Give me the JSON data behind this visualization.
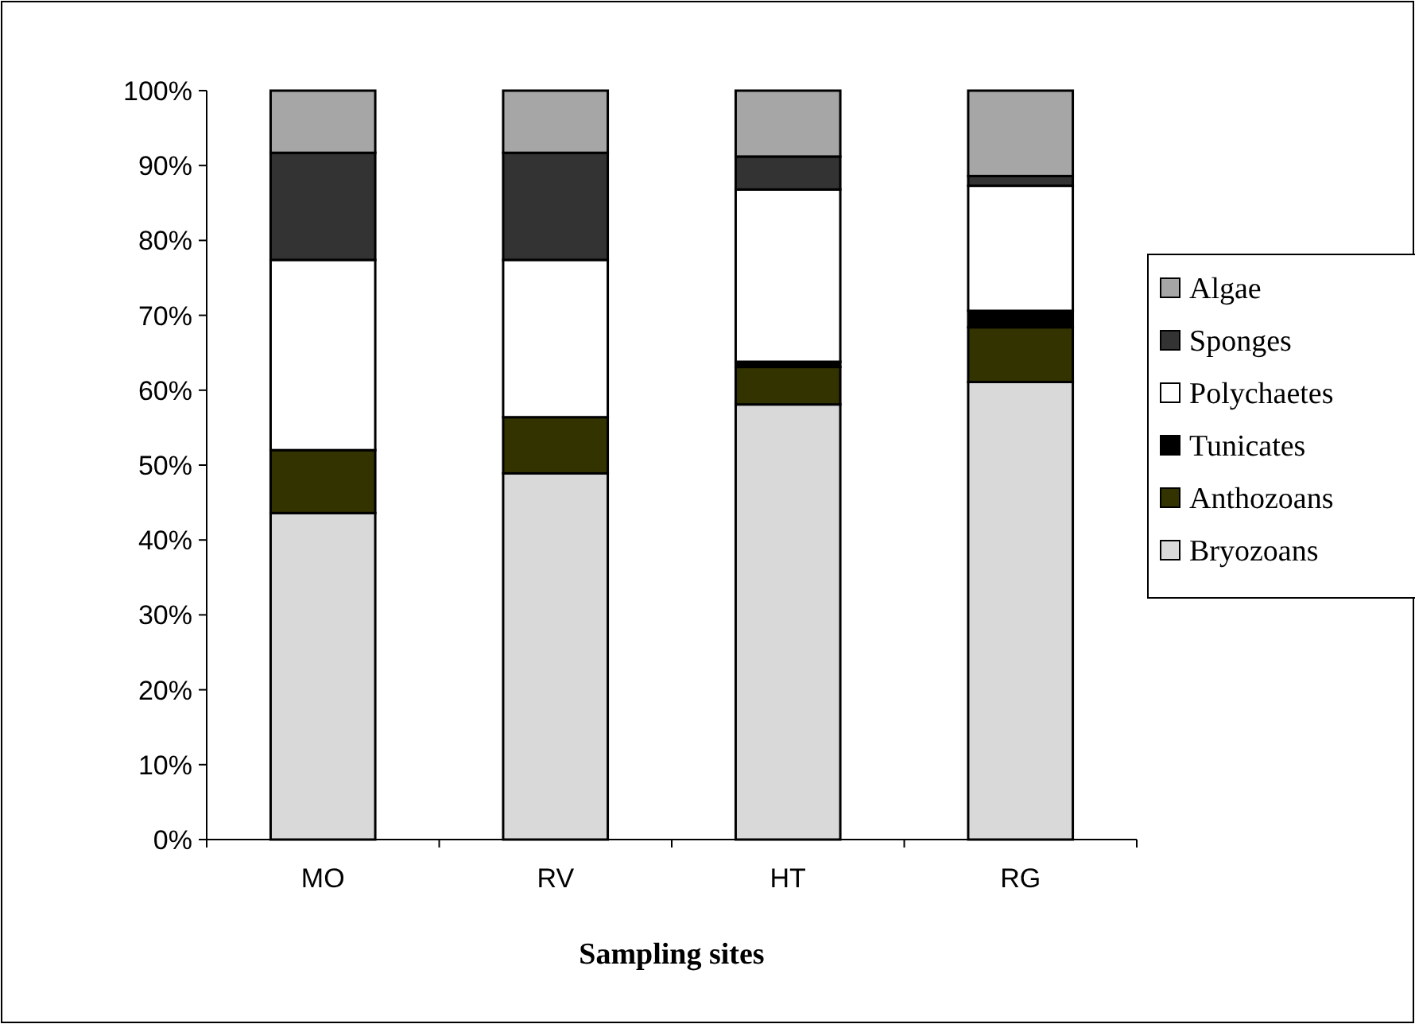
{
  "chart_data": {
    "type": "bar",
    "stacked": true,
    "xlabel": "Sampling sites",
    "categories": [
      "MO",
      "RV",
      "HT",
      "RG"
    ],
    "series": [
      {
        "name": "Bryozoans",
        "color": "#d9d9d9",
        "values": [
          43.6,
          48.9,
          58.1,
          61.1
        ]
      },
      {
        "name": "Anthozoans",
        "color": "#333300",
        "values": [
          8.4,
          7.5,
          5.0,
          7.3
        ]
      },
      {
        "name": "Tunicates",
        "color": "#000000",
        "values": [
          0,
          0,
          0.7,
          2.2
        ]
      },
      {
        "name": "Polychaetes",
        "color": "#ffffff",
        "values": [
          25.4,
          21.0,
          23.0,
          16.7
        ]
      },
      {
        "name": "Sponges",
        "color": "#333333",
        "values": [
          14.3,
          14.3,
          4.4,
          1.3
        ]
      },
      {
        "name": "Algae",
        "color": "#a6a6a6",
        "values": [
          8.3,
          8.3,
          8.8,
          11.4
        ]
      }
    ],
    "ylim": [
      0,
      100
    ],
    "yticks": [
      {
        "value": 0,
        "label": "0%"
      },
      {
        "value": 10,
        "label": "10%"
      },
      {
        "value": 20,
        "label": "20%"
      },
      {
        "value": 30,
        "label": "30%"
      },
      {
        "value": 40,
        "label": "40%"
      },
      {
        "value": 50,
        "label": "50%"
      },
      {
        "value": 60,
        "label": "60%"
      },
      {
        "value": 70,
        "label": "70%"
      },
      {
        "value": 80,
        "label": "80%"
      },
      {
        "value": 90,
        "label": "90%"
      },
      {
        "value": 100,
        "label": "100%"
      }
    ],
    "legend": "right",
    "grid": false
  }
}
